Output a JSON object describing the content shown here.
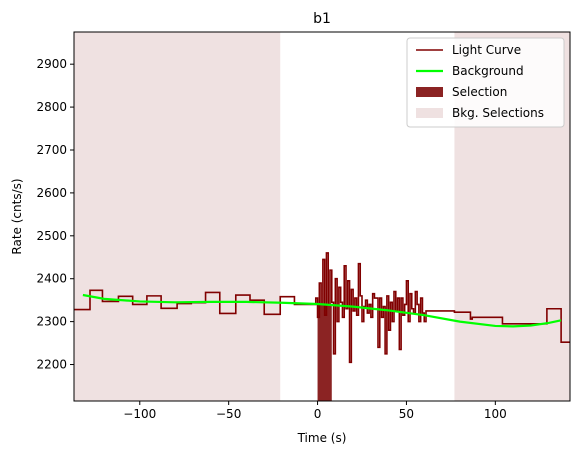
{
  "chart_data": {
    "type": "line",
    "title": "b1",
    "xlabel": "Time (s)",
    "ylabel": "Rate (cnts/s)",
    "xlim": [
      -137,
      142
    ],
    "ylim": [
      2115,
      2975
    ],
    "xticks": [
      -100,
      -50,
      0,
      50,
      100
    ],
    "yticks": [
      2200,
      2300,
      2400,
      2500,
      2600,
      2700,
      2800,
      2900
    ],
    "grid": false,
    "legend_position": "top-right",
    "legend": [
      {
        "label": "Light Curve",
        "kind": "line",
        "color": "#800000"
      },
      {
        "label": "Background",
        "kind": "line",
        "color": "#00ff00"
      },
      {
        "label": "Selection",
        "kind": "patch",
        "color": "#8b2323"
      },
      {
        "label": "Bkg. Selections",
        "kind": "patch",
        "color": "#efe1e1"
      }
    ],
    "colors": {
      "light_curve": "#800000",
      "background": "#00ff00",
      "selection": "#8b2323",
      "bkg_selection": "#efe1e1"
    },
    "bkg_selections": [
      [
        -137,
        -21
      ],
      [
        77,
        142
      ]
    ],
    "selection": [
      0,
      8
    ],
    "light_curve": {
      "name": "Light Curve",
      "points": [
        [
          -137,
          2328
        ],
        [
          -128,
          2373
        ],
        [
          -121,
          2347
        ],
        [
          -112,
          2359
        ],
        [
          -104,
          2340
        ],
        [
          -96,
          2360
        ],
        [
          -88,
          2331
        ],
        [
          -79,
          2342
        ],
        [
          -71,
          2344
        ],
        [
          -63,
          2368
        ],
        [
          -55,
          2319
        ],
        [
          -46,
          2362
        ],
        [
          -38,
          2350
        ],
        [
          -30,
          2317
        ],
        [
          -21,
          2358
        ],
        [
          -13,
          2340
        ],
        [
          -5,
          2340
        ],
        [
          -1,
          2355
        ],
        [
          0,
          2310
        ],
        [
          1,
          2390
        ],
        [
          2,
          2340
        ],
        [
          3,
          2445
        ],
        [
          4,
          2315
        ],
        [
          5,
          2460
        ],
        [
          6,
          2340
        ],
        [
          7,
          2420
        ],
        [
          8,
          2345
        ],
        [
          9,
          2225
        ],
        [
          10,
          2400
        ],
        [
          11,
          2300
        ],
        [
          12,
          2380
        ],
        [
          13,
          2345
        ],
        [
          14,
          2310
        ],
        [
          15,
          2430
        ],
        [
          16,
          2330
        ],
        [
          17,
          2395
        ],
        [
          18,
          2205
        ],
        [
          19,
          2375
        ],
        [
          20,
          2325
        ],
        [
          21,
          2355
        ],
        [
          22,
          2315
        ],
        [
          23,
          2435
        ],
        [
          24,
          2360
        ],
        [
          25,
          2300
        ],
        [
          26,
          2335
        ],
        [
          27,
          2350
        ],
        [
          28,
          2320
        ],
        [
          29,
          2340
        ],
        [
          30,
          2310
        ],
        [
          31,
          2365
        ],
        [
          32,
          2355
        ],
        [
          33,
          2355
        ],
        [
          34,
          2240
        ],
        [
          35,
          2355
        ],
        [
          36,
          2310
        ],
        [
          37,
          2335
        ],
        [
          38,
          2225
        ],
        [
          39,
          2360
        ],
        [
          40,
          2280
        ],
        [
          41,
          2345
        ],
        [
          42,
          2300
        ],
        [
          43,
          2370
        ],
        [
          44,
          2325
        ],
        [
          45,
          2355
        ],
        [
          46,
          2235
        ],
        [
          47,
          2355
        ],
        [
          48,
          2315
        ],
        [
          49,
          2340
        ],
        [
          50,
          2395
        ],
        [
          51,
          2300
        ],
        [
          52,
          2365
        ],
        [
          53,
          2330
        ],
        [
          54,
          2320
        ],
        [
          55,
          2370
        ],
        [
          56,
          2340
        ],
        [
          57,
          2300
        ],
        [
          58,
          2355
        ],
        [
          59,
          2320
        ],
        [
          60,
          2300
        ],
        [
          61,
          2325
        ],
        [
          62,
          2325
        ],
        [
          68,
          2325
        ],
        [
          69,
          2325
        ],
        [
          77,
          2322
        ],
        [
          78,
          2322
        ],
        [
          86,
          2306
        ],
        [
          87,
          2310
        ],
        [
          95,
          2310
        ],
        [
          104,
          2295
        ],
        [
          112,
          2295
        ],
        [
          121,
          2295
        ],
        [
          129,
          2330
        ],
        [
          137,
          2252
        ],
        [
          142,
          2252
        ]
      ]
    },
    "background": {
      "name": "Background",
      "points": [
        [
          -132,
          2362
        ],
        [
          -120,
          2353
        ],
        [
          -100,
          2347
        ],
        [
          -80,
          2345
        ],
        [
          -60,
          2346
        ],
        [
          -40,
          2346
        ],
        [
          -20,
          2344
        ],
        [
          0,
          2341
        ],
        [
          20,
          2335
        ],
        [
          40,
          2326
        ],
        [
          60,
          2315
        ],
        [
          80,
          2300
        ],
        [
          100,
          2290
        ],
        [
          110,
          2289
        ],
        [
          120,
          2291
        ],
        [
          130,
          2297
        ],
        [
          137,
          2303
        ]
      ]
    }
  }
}
